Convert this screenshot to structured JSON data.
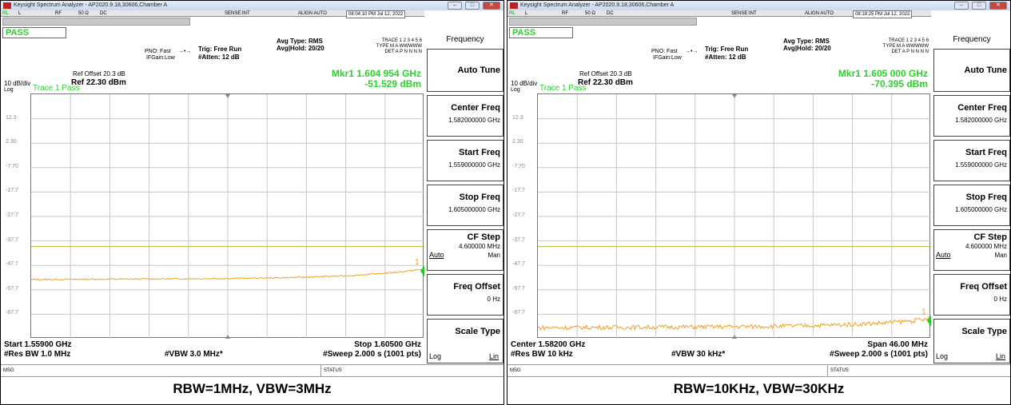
{
  "panels": [
    {
      "window_title": "Keysight Spectrum Analyzer - AP2020.9.18,30606,Chamber A",
      "top_row": {
        "rf": "RF",
        "impedance": "50 Ω",
        "coupling": "DC",
        "sense": "SENSE:INT",
        "align": "ALIGN AUTO",
        "time": "08:04:10 PM Jul 12, 2022",
        "mode_l": "L"
      },
      "status": "PASS",
      "pno": "PNO: Fast",
      "ifgain": "IFGain:Low",
      "trig": "Trig: Free Run",
      "atten": "#Atten: 12 dB",
      "avg_type": "Avg Type: RMS",
      "avg_hold": "Avg|Hold: 20/20",
      "trace_line1": "TRACE 1 2 3 4 5 6",
      "trace_line2": "TYPE M A WWWWW",
      "trace_line3": "DET A P N N N N",
      "ref_offset": "Ref Offset 20.3 dB",
      "scale": "10 dB/div",
      "ref_level": "Ref 22.30 dBm",
      "log_label": "Log",
      "marker_freq": "Mkr1 1.604 954 GHz",
      "marker_amp": "-51.529 dBm",
      "trace_pass": "Trace 1 Pass",
      "y_ticks": [
        "12.3",
        "2.30",
        "-7.70",
        "-17.7",
        "-27.7",
        "-37.7",
        "-47.7",
        "-57.7",
        "-67.7"
      ],
      "marker_label": "1",
      "start": "Start 1.55900 GHz",
      "stop": "Stop 1.60500 GHz",
      "rbw": "#Res BW 1.0 MHz",
      "vbw": "#VBW 3.0 MHz*",
      "sweep": "#Sweep  2.000 s (1001 pts)",
      "msg": "MSG",
      "status_label": "STATUS",
      "caption": "RBW=1MHz, VBW=3MHz",
      "trace_level": -53.5,
      "trace_end": -50.0,
      "noise": 0.25
    },
    {
      "window_title": "Keysight Spectrum Analyzer - AP2020.9.18,30606,Chamber A",
      "top_row": {
        "rf": "RF",
        "impedance": "50 Ω",
        "coupling": "DC",
        "sense": "SENSE:INT",
        "align": "ALIGN AUTO",
        "time": "08:18:25 PM Jul 12, 2022",
        "mode_l": "L"
      },
      "status": "PASS",
      "pno": "PNO: Fast",
      "ifgain": "IFGain:Low",
      "trig": "Trig: Free Run",
      "atten": "#Atten: 12 dB",
      "avg_type": "Avg Type: RMS",
      "avg_hold": "Avg|Hold: 20/20",
      "trace_line1": "TRACE 1 2 3 4 5 6",
      "trace_line2": "TYPE M A WWWWW",
      "trace_line3": "DET A P N N N N",
      "ref_offset": "Ref Offset 20.3 dB",
      "scale": "10 dB/div",
      "ref_level": "Ref 22.30 dBm",
      "log_label": "Log",
      "marker_freq": "Mkr1 1.605 000 GHz",
      "marker_amp": "-70.395 dBm",
      "trace_pass": "Trace 1 Pass",
      "y_ticks": [
        "12.3",
        "2.30",
        "-7.70",
        "-17.7",
        "-27.7",
        "-37.7",
        "-47.7",
        "-57.7",
        "-67.7"
      ],
      "marker_label": "1",
      "start": "Center 1.58200 GHz",
      "stop": "Span 46.00 MHz",
      "rbw": "#Res BW 10 kHz",
      "vbw": "#VBW 30 kHz*",
      "sweep": "#Sweep  2.000 s (1001 pts)",
      "msg": "MSG",
      "status_label": "STATUS",
      "caption": "RBW=10KHz, VBW=30KHz",
      "trace_level": -73.2,
      "trace_end": -70.4,
      "noise": 0.9
    }
  ],
  "softkeys": {
    "header": "Frequency",
    "auto_tune": "Auto Tune",
    "center_freq": {
      "title": "Center Freq",
      "value": "1.582000000 GHz"
    },
    "start_freq": {
      "title": "Start Freq",
      "value": "1.559000000 GHz"
    },
    "stop_freq": {
      "title": "Stop Freq",
      "value": "1.605000000 GHz"
    },
    "cf_step": {
      "title": "CF Step",
      "value": "4.600000 MHz",
      "auto": "Auto",
      "man": "Man"
    },
    "freq_offset": {
      "title": "Freq Offset",
      "value": "0 Hz"
    },
    "scale_type": {
      "title": "Scale Type",
      "log": "Log",
      "lin": "Lin"
    }
  },
  "colors": {
    "trace": "#f0a020",
    "limit": "#b5b53a",
    "marker": "#22cc22",
    "pass": "#2bd12b"
  },
  "axis": {
    "ref_top": 22.3,
    "div_db": 10,
    "divisions": 10,
    "limit_db": -40.0
  }
}
